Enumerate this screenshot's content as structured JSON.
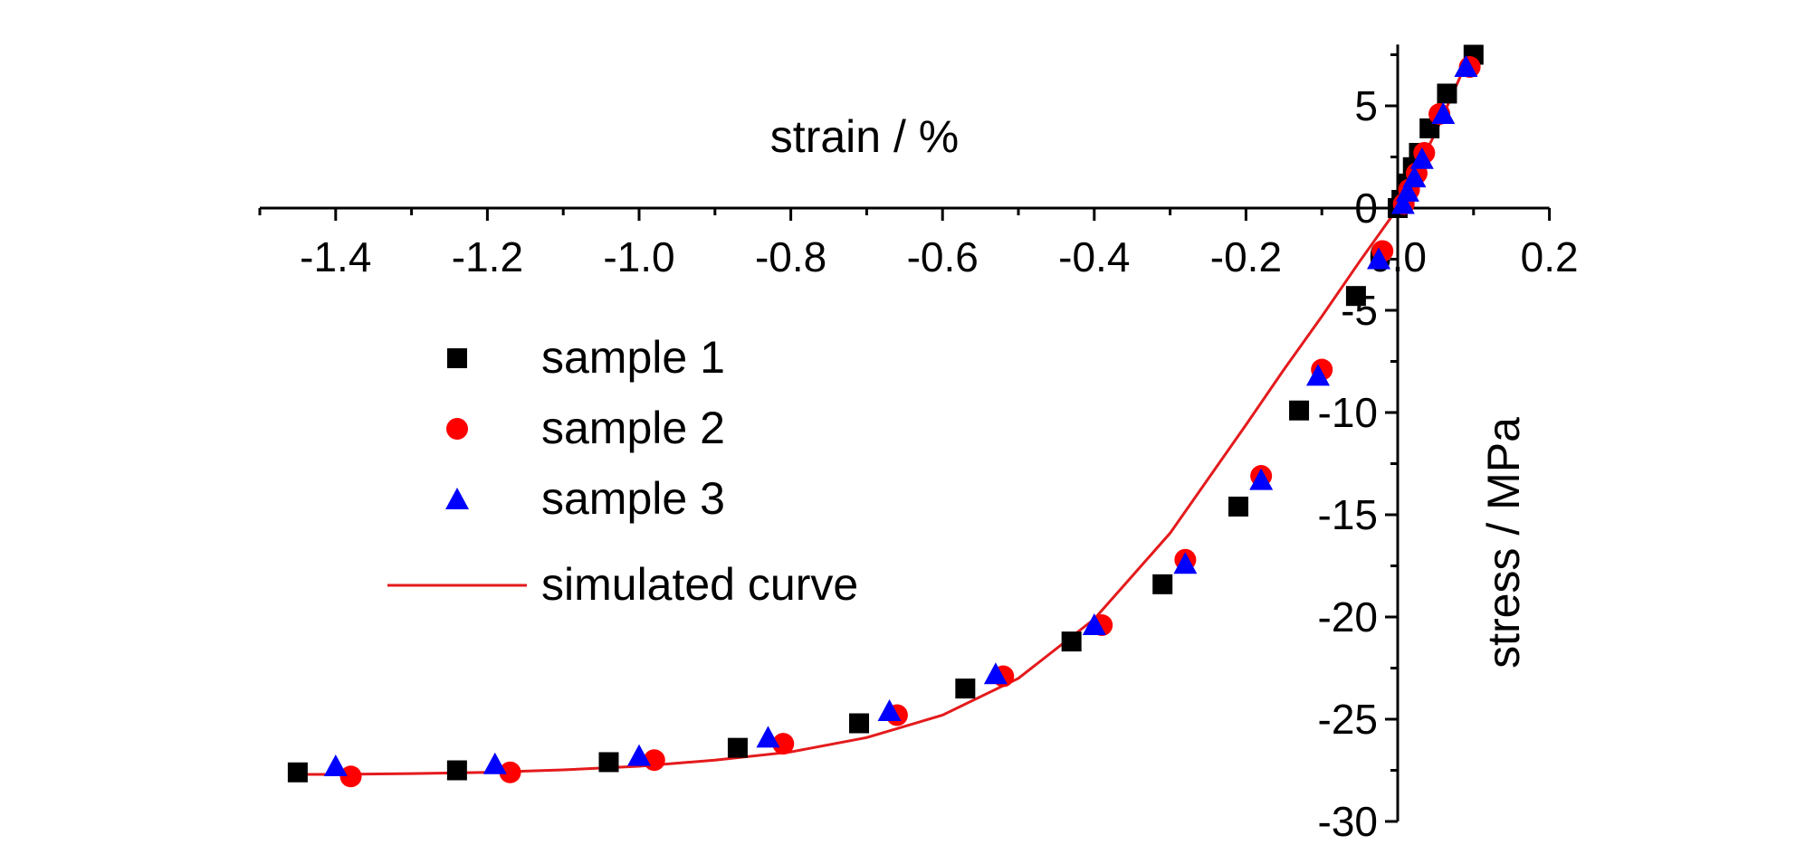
{
  "chart_data": {
    "type": "scatter",
    "xlabel": "strain / %",
    "ylabel": "stress / MPa",
    "xlim": [
      -1.5,
      0.2
    ],
    "ylim": [
      -30,
      8
    ],
    "x_ticks": [
      "-1.4",
      "-1.2",
      "-1.0",
      "-0.8",
      "-0.6",
      "-0.4",
      "-0.2",
      "0.0",
      "0.2"
    ],
    "y_ticks": [
      "5",
      "0",
      "-5",
      "-10",
      "-15",
      "-20",
      "-25",
      "-30"
    ],
    "x_tick_values": [
      -1.4,
      -1.2,
      -1.0,
      -0.8,
      -0.6,
      -0.4,
      -0.2,
      0.0,
      0.2
    ],
    "y_tick_values": [
      5,
      0,
      -5,
      -10,
      -15,
      -20,
      -25,
      -30
    ],
    "legend_position": "left",
    "series": [
      {
        "name": "sample 1",
        "marker": "square",
        "color": "#000000",
        "x": [
          -1.45,
          -1.24,
          -1.04,
          -0.87,
          -0.71,
          -0.57,
          -0.43,
          -0.31,
          -0.21,
          -0.13,
          -0.055,
          0.0,
          0.005,
          0.012,
          0.02,
          0.028,
          0.042,
          0.065,
          0.1
        ],
        "y": [
          -27.6,
          -27.5,
          -27.1,
          -26.4,
          -25.2,
          -23.5,
          -21.2,
          -18.4,
          -14.6,
          -9.9,
          -4.3,
          0.0,
          0.4,
          1.2,
          2.0,
          2.7,
          3.9,
          5.6,
          7.5
        ]
      },
      {
        "name": "sample 2",
        "marker": "circle",
        "color": "#ff0000",
        "x": [
          -1.38,
          -1.17,
          -0.98,
          -0.81,
          -0.66,
          -0.52,
          -0.39,
          -0.28,
          -0.18,
          -0.1,
          -0.02,
          0.008,
          0.015,
          0.025,
          0.035,
          0.055,
          0.095
        ],
        "y": [
          -27.8,
          -27.6,
          -27.0,
          -26.2,
          -24.8,
          -22.9,
          -20.4,
          -17.2,
          -13.1,
          -7.9,
          -2.1,
          0.2,
          0.9,
          1.7,
          2.7,
          4.6,
          6.9
        ]
      },
      {
        "name": "sample 3",
        "marker": "triangle",
        "color": "#0000ff",
        "x": [
          -1.4,
          -1.19,
          -1.0,
          -0.83,
          -0.67,
          -0.53,
          -0.4,
          -0.28,
          -0.18,
          -0.105,
          -0.025,
          0.007,
          0.013,
          0.022,
          0.032,
          0.06,
          0.09
        ],
        "y": [
          -27.3,
          -27.2,
          -26.8,
          -25.9,
          -24.6,
          -22.8,
          -20.4,
          -17.4,
          -13.3,
          -8.2,
          -2.5,
          0.2,
          0.8,
          1.5,
          2.4,
          4.6,
          6.9
        ]
      },
      {
        "name": "simulated curve",
        "type": "line",
        "color": "#e41a1c",
        "x": [
          -1.45,
          -1.4,
          -1.3,
          -1.2,
          -1.1,
          -1.0,
          -0.9,
          -0.8,
          -0.7,
          -0.6,
          -0.5,
          -0.4,
          -0.3,
          -0.2,
          -0.15,
          -0.1,
          -0.05,
          0.0,
          0.05,
          0.1
        ],
        "y": [
          -27.7,
          -27.7,
          -27.66,
          -27.6,
          -27.48,
          -27.3,
          -27.0,
          -26.6,
          -25.9,
          -24.8,
          -23.0,
          -20.1,
          -15.9,
          -10.6,
          -7.9,
          -5.3,
          -2.6,
          0.0,
          3.7,
          7.9
        ]
      }
    ]
  }
}
